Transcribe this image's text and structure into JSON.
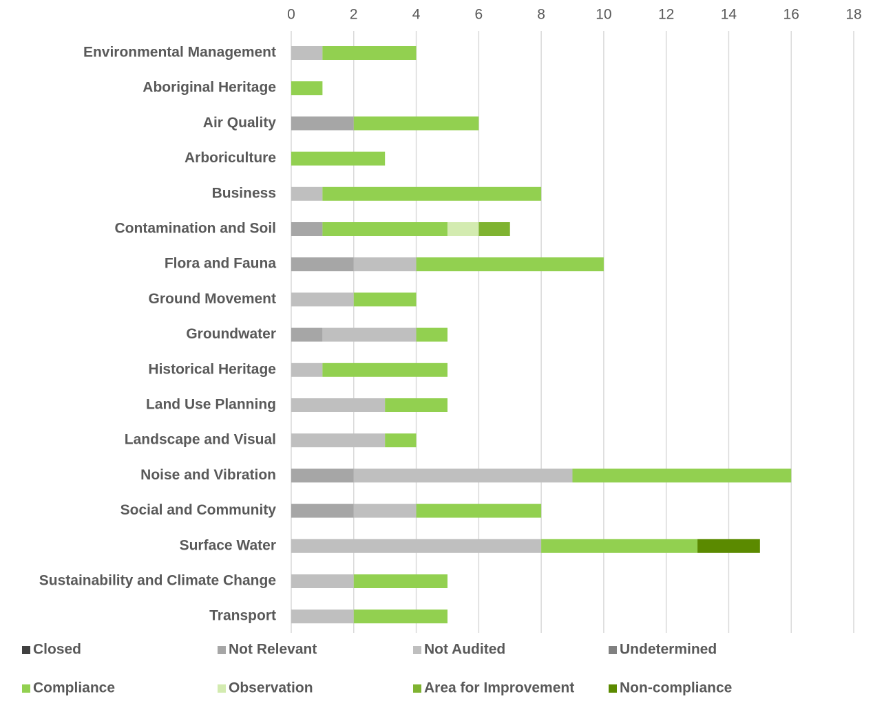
{
  "chart_data": {
    "type": "stacked_barh",
    "categories": [
      "Environmental Management",
      "Aboriginal Heritage",
      "Air Quality",
      "Arboriculture",
      "Business",
      "Contamination and Soil",
      "Flora and Fauna",
      "Ground Movement",
      "Groundwater",
      "Historical Heritage",
      "Land Use Planning",
      "Landscape and Visual",
      "Noise and Vibration",
      "Social and Community",
      "Surface Water",
      "Sustainability and Climate Change",
      "Transport"
    ],
    "series": [
      {
        "name": "Closed",
        "color": "#404040",
        "values": [
          0,
          0,
          0,
          0,
          0,
          0,
          0,
          0,
          0,
          0,
          0,
          0,
          0,
          0,
          0,
          0,
          0
        ]
      },
      {
        "name": "Not Relevant",
        "color": "#a6a6a6",
        "values": [
          0,
          0,
          2,
          0,
          0,
          1,
          2,
          0,
          1,
          0,
          0,
          0,
          2,
          2,
          0,
          0,
          0
        ]
      },
      {
        "name": "Not Audited",
        "color": "#bfbfbf",
        "values": [
          1,
          0,
          0,
          0,
          1,
          0,
          2,
          2,
          3,
          1,
          3,
          3,
          7,
          2,
          8,
          2,
          2
        ]
      },
      {
        "name": "Undetermined",
        "color": "#808080",
        "values": [
          0,
          0,
          0,
          0,
          0,
          0,
          0,
          0,
          0,
          0,
          0,
          0,
          0,
          0,
          0,
          0,
          0
        ]
      },
      {
        "name": "Compliance",
        "color": "#92d050",
        "values": [
          3,
          1,
          4,
          3,
          7,
          4,
          6,
          2,
          1,
          4,
          2,
          1,
          7,
          4,
          5,
          3,
          3
        ]
      },
      {
        "name": "Observation",
        "color": "#d3ebb0",
        "values": [
          0,
          0,
          0,
          0,
          0,
          1,
          0,
          0,
          0,
          0,
          0,
          0,
          0,
          0,
          0,
          0,
          0
        ]
      },
      {
        "name": "Area for Improvement",
        "color": "#7fb331",
        "values": [
          0,
          0,
          0,
          0,
          0,
          1,
          0,
          0,
          0,
          0,
          0,
          0,
          0,
          0,
          0,
          0,
          0
        ]
      },
      {
        "name": "Non-compliance",
        "color": "#5b8a00",
        "values": [
          0,
          0,
          0,
          0,
          0,
          0,
          0,
          0,
          0,
          0,
          0,
          0,
          0,
          0,
          2,
          0,
          0
        ]
      }
    ],
    "xlim": [
      0,
      18
    ],
    "xticks": [
      0,
      2,
      4,
      6,
      8,
      10,
      12,
      14,
      16,
      18
    ],
    "grid": true,
    "legend": "bottom"
  }
}
